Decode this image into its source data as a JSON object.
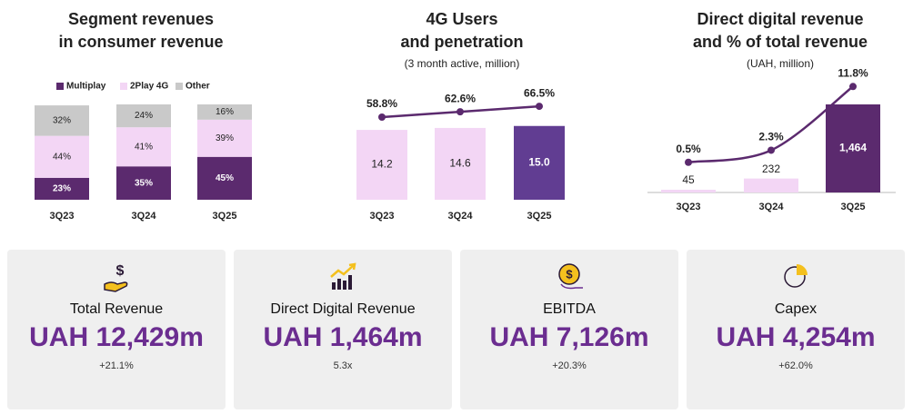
{
  "chart_data": [
    {
      "type": "stacked_bar",
      "title": [
        "Segment revenues",
        "in consumer revenue"
      ],
      "categories": [
        "3Q23",
        "3Q24",
        "3Q25"
      ],
      "ylim": [
        0,
        100
      ],
      "legend": "top",
      "series": [
        {
          "name": "Multiplay",
          "color": "#5b2a6e",
          "values": [
            23,
            35,
            45
          ],
          "value_labels": [
            "23%",
            "35%",
            "45%"
          ]
        },
        {
          "name": "2Play 4G",
          "color": "#f3d6f5",
          "values": [
            44,
            41,
            39
          ],
          "value_labels": [
            "44%",
            "41%",
            "39%"
          ]
        },
        {
          "name": "Other",
          "color": "#c9c9c9",
          "values": [
            32,
            24,
            16
          ],
          "value_labels": [
            "32%",
            "24%",
            "16%"
          ]
        }
      ]
    },
    {
      "type": "bar_line",
      "title": [
        "4G Users",
        "and penetration"
      ],
      "subtitle": "(3 month active, million)",
      "categories": [
        "3Q23",
        "3Q24",
        "3Q25"
      ],
      "ylim": [
        0,
        24
      ],
      "y2lim": [
        0,
        84
      ],
      "series": [
        {
          "colors": [
            "#f3d6f5",
            "#f3d6f5",
            "#613d92"
          ],
          "values": [
            14.2,
            14.6,
            15
          ],
          "value_labels": [
            "14.2",
            "14.6",
            "15.0"
          ]
        },
        {
          "axis": "y2",
          "color": "#5b2a6e",
          "values": [
            58.8,
            62.6,
            66.5
          ],
          "value_labels": [
            "58.8%",
            "62.6%",
            "66.5%"
          ]
        }
      ]
    },
    {
      "type": "bar_line",
      "title": [
        "Direct digital revenue",
        "and % of total revenue"
      ],
      "subtitle": "(UAH, million)",
      "categories": [
        "3Q23",
        "3Q24",
        "3Q25"
      ],
      "ylim": [
        0,
        1962
      ],
      "y2lim": [
        -4,
        13.6
      ],
      "series": [
        {
          "colors": [
            "#f3d6f5",
            "#f3d6f5",
            "#5b2a6e"
          ],
          "values": [
            45,
            232,
            1464
          ],
          "value_labels": [
            "45",
            "232",
            "1,464"
          ]
        },
        {
          "axis": "y2",
          "color": "#5b2a6e",
          "values": [
            0.5,
            2.3,
            11.8
          ],
          "value_labels": [
            "0.5%",
            "2.3%",
            "11.8%"
          ]
        }
      ]
    }
  ],
  "cards": [
    {
      "label": "Total Revenue",
      "value": "UAH 12,429m",
      "change": "+21.1%"
    },
    {
      "label": "Direct Digital Revenue",
      "value": "UAH 1,464m",
      "change": "5.3x"
    },
    {
      "label": "EBITDA",
      "value": "UAH 7,126m",
      "change": "+20.3%"
    },
    {
      "label": "Capex",
      "value": "UAH 4,254m",
      "change": "+62.0%"
    }
  ]
}
